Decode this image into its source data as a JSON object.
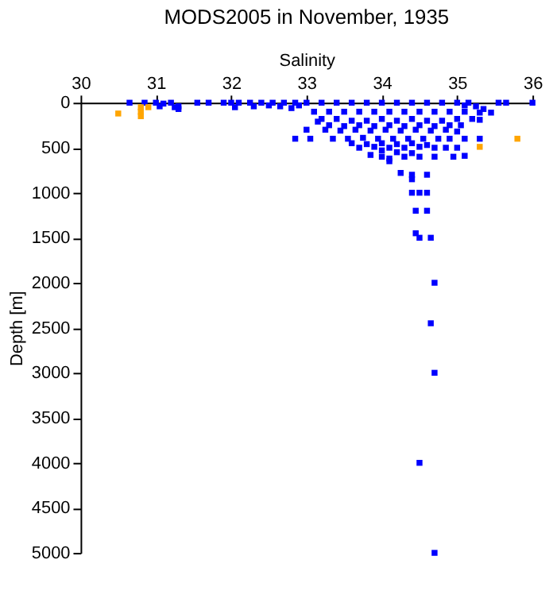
{
  "chart_data": {
    "type": "scatter",
    "title": "MODS2005 in November, 1935",
    "xlabel": "Salinity",
    "ylabel": "Depth [m]",
    "xlim": [
      30,
      36
    ],
    "xticks": [
      30,
      31,
      32,
      33,
      34,
      35,
      36
    ],
    "ylim": [
      5000,
      0
    ],
    "yticks": [
      0,
      500,
      1000,
      1500,
      2000,
      2500,
      3000,
      3500,
      4000,
      4500,
      5000
    ],
    "grid": false,
    "marker": "square",
    "series": [
      {
        "color": "#0000ff",
        "x": [
          30.65,
          30.85,
          31.0,
          31.1,
          31.2,
          31.55,
          31.3,
          31.7,
          31.9,
          32.0,
          32.1,
          32.25,
          32.4,
          32.55,
          32.7,
          32.85,
          33.0,
          33.2,
          33.4,
          33.6,
          33.8,
          34.0,
          34.2,
          34.4,
          34.6,
          34.8,
          35.0,
          35.15,
          35.55,
          35.65,
          36.0,
          31.05,
          31.25,
          31.3,
          32.05,
          32.3,
          32.5,
          32.65,
          32.8,
          32.9,
          35.25,
          35.35,
          35.1,
          33.1,
          33.3,
          33.5,
          33.7,
          33.9,
          34.1,
          34.3,
          34.5,
          34.7,
          34.9,
          35.1,
          35.3,
          35.45,
          33.2,
          33.4,
          33.6,
          33.8,
          34.0,
          34.2,
          34.4,
          34.6,
          34.8,
          35.0,
          35.2,
          35.3,
          33.15,
          33.3,
          33.5,
          33.7,
          33.9,
          34.1,
          34.3,
          34.5,
          34.7,
          34.9,
          35.05,
          33.0,
          33.25,
          33.45,
          33.65,
          33.85,
          34.05,
          34.25,
          34.45,
          34.65,
          34.85,
          35.0,
          32.85,
          33.05,
          33.35,
          33.55,
          33.75,
          33.95,
          34.15,
          34.35,
          34.55,
          34.75,
          34.9,
          35.1,
          35.3,
          33.6,
          33.8,
          34.0,
          34.2,
          34.4,
          34.6,
          33.7,
          33.9,
          34.1,
          34.3,
          34.5,
          34.7,
          34.85,
          35.0,
          34.0,
          34.2,
          34.4,
          33.85,
          34.0,
          34.1,
          34.3,
          34.5,
          34.7,
          34.95,
          35.1,
          34.1,
          34.25,
          34.4,
          34.6,
          34.4,
          34.4,
          34.5,
          34.6,
          34.45,
          34.6,
          34.45,
          34.5,
          34.65,
          34.7,
          34.65,
          34.7,
          34.5,
          34.7
        ],
        "values": [
          0,
          0,
          0,
          10,
          0,
          0,
          40,
          0,
          0,
          0,
          0,
          0,
          0,
          0,
          0,
          0,
          0,
          0,
          0,
          0,
          0,
          0,
          0,
          0,
          0,
          0,
          0,
          0,
          0,
          0,
          0,
          40,
          50,
          70,
          50,
          40,
          30,
          40,
          60,
          30,
          40,
          70,
          30,
          100,
          100,
          100,
          100,
          100,
          100,
          100,
          100,
          100,
          100,
          100,
          110,
          110,
          180,
          180,
          200,
          200,
          180,
          200,
          180,
          200,
          200,
          180,
          180,
          190,
          210,
          250,
          260,
          250,
          260,
          250,
          260,
          250,
          260,
          250,
          250,
          300,
          300,
          310,
          300,
          310,
          300,
          310,
          300,
          310,
          300,
          320,
          400,
          400,
          400,
          400,
          390,
          400,
          400,
          400,
          400,
          400,
          400,
          400,
          400,
          450,
          460,
          450,
          460,
          450,
          470,
          500,
          490,
          500,
          500,
          490,
          500,
          500,
          500,
          530,
          550,
          560,
          580,
          600,
          620,
          600,
          600,
          600,
          600,
          590,
          650,
          780,
          800,
          800,
          850,
          1000,
          1000,
          1000,
          1200,
          1200,
          1450,
          1500,
          1500,
          2000,
          2450,
          3000,
          4000,
          5000
        ]
      },
      {
        "color": "#ffa500",
        "x": [
          30.5,
          30.8,
          30.8,
          30.8,
          30.9,
          35.8,
          35.3
        ],
        "values": [
          120,
          50,
          100,
          150,
          50,
          400,
          490
        ]
      }
    ]
  }
}
